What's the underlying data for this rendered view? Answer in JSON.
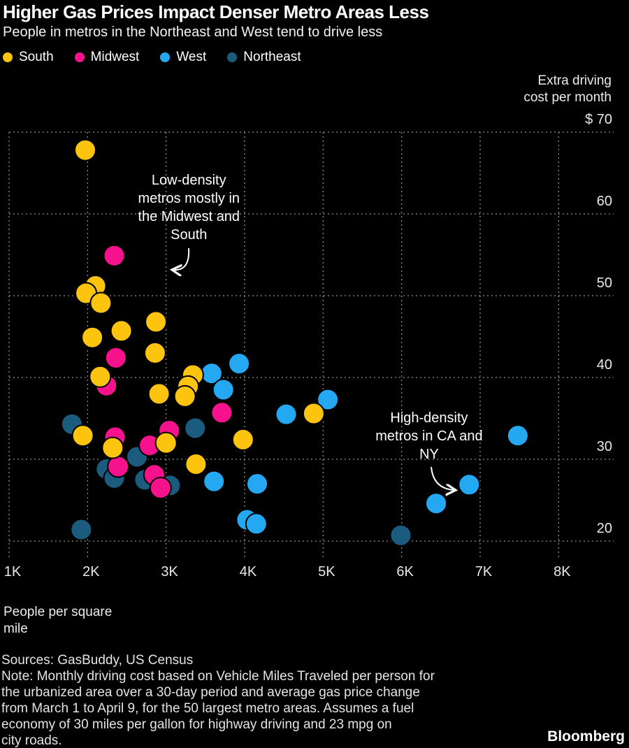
{
  "header": {
    "title": "Higher Gas Prices Impact Denser Metro Areas Less",
    "subtitle": "People in metros in the Northeast and West tend to drive less"
  },
  "legend": [
    {
      "label": "South",
      "color": "#fdc40f"
    },
    {
      "label": "Midwest",
      "color": "#f7128d"
    },
    {
      "label": "West",
      "color": "#24a8f2"
    },
    {
      "label": "Northeast",
      "color": "#1a5b7e"
    }
  ],
  "y_axis_title_lines": [
    "Extra driving",
    "cost per month"
  ],
  "x_axis_title_lines": [
    "People per square",
    "mile"
  ],
  "footer": {
    "sources": "Sources: GasBuddy, US Census",
    "note_lines": [
      "Note: Monthly driving cost based on Vehicle Miles Traveled per person for",
      "the urbanized area over a 30-day period and average gas price change",
      "from March 1 to April 9, for the 50 largest metro areas. Assumes a fuel",
      "economy of 30 miles per gallon for highway driving and 23 mpg on",
      "city roads."
    ],
    "logo": "Bloomberg"
  },
  "chart_data": {
    "type": "scatter",
    "title": "Higher Gas Prices Impact Denser Metro Areas Less",
    "xlabel": "People per square mile",
    "ylabel": "Extra driving cost per month ($)",
    "xlim": [
      1000,
      8700
    ],
    "ylim": [
      18,
      70
    ],
    "grid": "dotted",
    "legend_position": "top",
    "x_ticks": [
      {
        "value": 1000,
        "label": "1K"
      },
      {
        "value": 2000,
        "label": "2K"
      },
      {
        "value": 3000,
        "label": "3K"
      },
      {
        "value": 4000,
        "label": "4K"
      },
      {
        "value": 5000,
        "label": "5K"
      },
      {
        "value": 6000,
        "label": "6K"
      },
      {
        "value": 7000,
        "label": "7K"
      },
      {
        "value": 8000,
        "label": "8K"
      }
    ],
    "y_ticks": [
      {
        "value": 70,
        "label": "$ 70"
      },
      {
        "value": 60,
        "label": "60"
      },
      {
        "value": 50,
        "label": "50"
      },
      {
        "value": 40,
        "label": "40"
      },
      {
        "value": 30,
        "label": "30"
      },
      {
        "value": 20,
        "label": "20"
      }
    ],
    "series": [
      {
        "name": "South",
        "color": "#fdc40f",
        "points": [
          [
            1970,
            67.8
          ],
          [
            2100,
            51.2
          ],
          [
            1980,
            50.3
          ],
          [
            2170,
            49.1
          ],
          [
            2430,
            45.7
          ],
          [
            2870,
            46.8
          ],
          [
            2060,
            44.9
          ],
          [
            2860,
            43.0
          ],
          [
            2160,
            40.1
          ],
          [
            3340,
            40.3
          ],
          [
            3280,
            38.9
          ],
          [
            3240,
            37.7
          ],
          [
            2910,
            38.0
          ],
          [
            1940,
            32.9
          ],
          [
            2320,
            31.4
          ],
          [
            3000,
            32.0
          ],
          [
            3380,
            29.4
          ],
          [
            3980,
            32.4
          ],
          [
            4880,
            35.6
          ]
        ]
      },
      {
        "name": "Midwest",
        "color": "#f7128d",
        "points": [
          [
            2340,
            54.9
          ],
          [
            2360,
            42.4
          ],
          [
            2240,
            39.0
          ],
          [
            2350,
            32.7
          ],
          [
            3040,
            33.5
          ],
          [
            2790,
            31.7
          ],
          [
            2390,
            29.1
          ],
          [
            2850,
            28.1
          ],
          [
            2930,
            26.5
          ],
          [
            3710,
            35.7
          ]
        ]
      },
      {
        "name": "West",
        "color": "#24a8f2",
        "points": [
          [
            3580,
            40.5
          ],
          [
            3930,
            41.7
          ],
          [
            3730,
            38.5
          ],
          [
            4530,
            35.5
          ],
          [
            5060,
            37.3
          ],
          [
            3610,
            27.3
          ],
          [
            4160,
            27.0
          ],
          [
            4030,
            22.6
          ],
          [
            4150,
            22.1
          ],
          [
            7480,
            32.9
          ],
          [
            6860,
            26.9
          ],
          [
            6440,
            24.6
          ]
        ]
      },
      {
        "name": "Northeast",
        "color": "#1a5b7e",
        "points": [
          [
            1800,
            34.3
          ],
          [
            3370,
            33.8
          ],
          [
            2630,
            30.3
          ],
          [
            2240,
            28.8
          ],
          [
            2340,
            27.7
          ],
          [
            2730,
            27.5
          ],
          [
            3050,
            26.8
          ],
          [
            1920,
            21.4
          ],
          [
            5990,
            20.7
          ]
        ]
      }
    ],
    "annotations": [
      {
        "id": "low-density",
        "lines": [
          "Low-density",
          "metros mostly in",
          "the Midwest and",
          "South"
        ],
        "x": 3290,
        "y": 64.2,
        "arrow": {
          "from": [
            3290,
            55.8
          ],
          "ctrl": [
            3310,
            53.0
          ],
          "to": [
            3090,
            53.2
          ]
        }
      },
      {
        "id": "high-density",
        "lines": [
          "High-density",
          "metros in CA and",
          "NY"
        ],
        "x": 6350,
        "y": 35.1,
        "arrow": {
          "from": [
            6380,
            29.1
          ],
          "ctrl": [
            6400,
            26.4
          ],
          "to": [
            6670,
            26.2
          ]
        }
      }
    ]
  }
}
